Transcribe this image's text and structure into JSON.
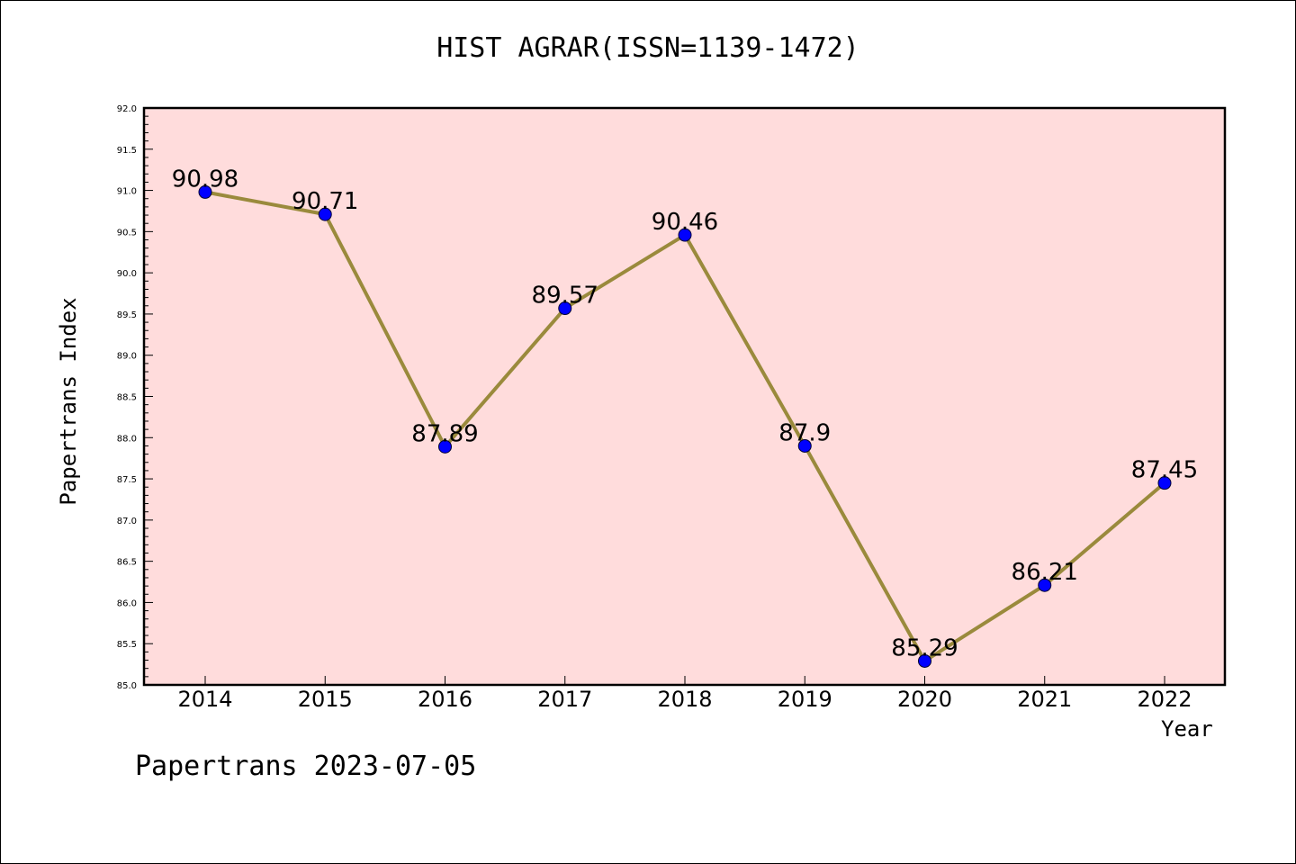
{
  "chart_data": {
    "type": "line",
    "title": "HIST AGRAR(ISSN=1139-1472)",
    "xlabel": "Year",
    "ylabel": "Papertrans Index",
    "x": [
      "2014",
      "2015",
      "2016",
      "2017",
      "2018",
      "2019",
      "2020",
      "2021",
      "2022"
    ],
    "series": [
      {
        "values": [
          90.98,
          90.71,
          87.89,
          89.57,
          90.46,
          87.9,
          85.29,
          86.21,
          87.45
        ],
        "labels": [
          "90.98",
          "90.71",
          "87.89",
          "89.57",
          "90.46",
          "87.9",
          "85.29",
          "86.21",
          "87.45"
        ]
      }
    ],
    "ylim": [
      85.0,
      92.0
    ],
    "yticks": [
      "85.0",
      "85.5",
      "86.0",
      "86.5",
      "87.0",
      "87.5",
      "88.0",
      "88.5",
      "89.0",
      "89.5",
      "90.0",
      "90.5",
      "91.0",
      "91.5",
      "92.0"
    ],
    "grid": false,
    "colors": {
      "plot_background": "#ffdcdc",
      "line": "#9a8a3c",
      "marker": "#0000ff"
    }
  },
  "footer": "Papertrans 2023-07-05"
}
